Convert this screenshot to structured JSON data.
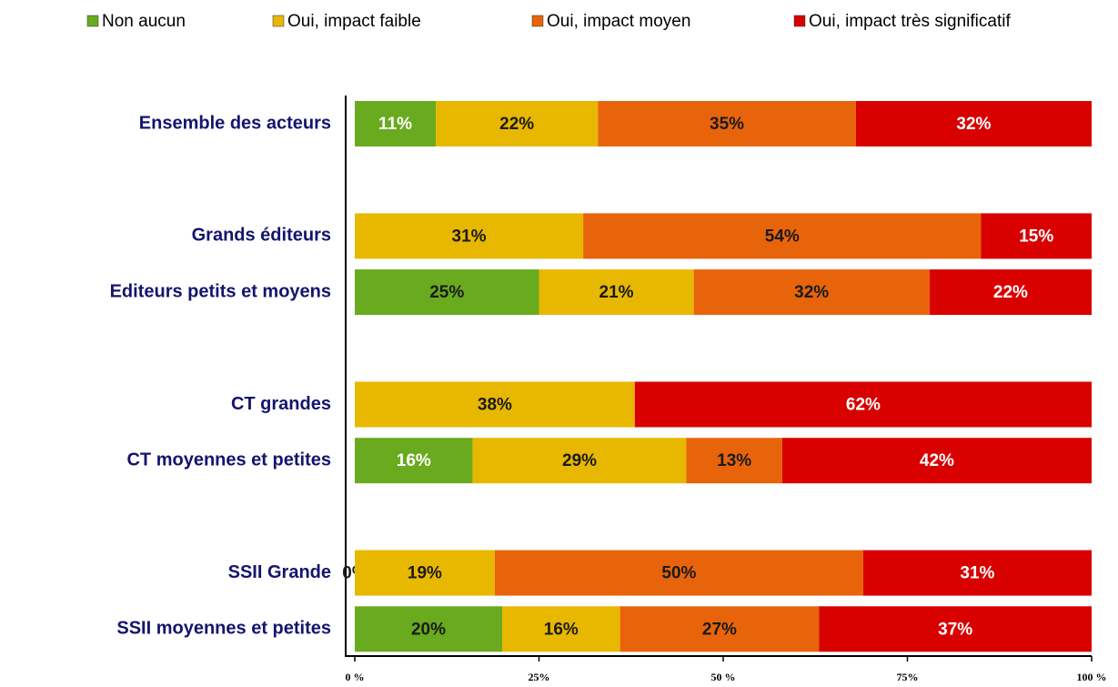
{
  "chart_data": {
    "type": "stacked_bar_horizontal",
    "categories": [
      "Ensemble des acteurs",
      null,
      "Grands éditeurs",
      "Editeurs petits et moyens",
      null,
      "CT grandes",
      "CT moyennes et petites",
      null,
      "SSII Grande",
      "SSII moyennes et petites"
    ],
    "series": [
      {
        "name": "Non aucun",
        "color": "#6aaa1e",
        "values": [
          11,
          null,
          null,
          25,
          null,
          null,
          16,
          null,
          0,
          20
        ],
        "value_labels": [
          "11%",
          null,
          null,
          "25%",
          null,
          null,
          "16%",
          null,
          "0%",
          "20%"
        ]
      },
      {
        "name": "Oui, impact faible",
        "color": "#e8b800",
        "values": [
          22,
          null,
          31,
          21,
          null,
          38,
          29,
          null,
          19,
          16
        ],
        "value_labels": [
          "22%",
          null,
          "31%",
          "21%",
          null,
          "38%",
          "29%",
          null,
          "19%",
          "16%"
        ]
      },
      {
        "name": "Oui, impact moyen",
        "color": "#e8640a",
        "values": [
          35,
          null,
          54,
          32,
          null,
          null,
          13,
          null,
          50,
          27
        ],
        "value_labels": [
          "35%",
          null,
          "54%",
          "32%",
          null,
          null,
          "13%",
          null,
          "50%",
          "27%"
        ]
      },
      {
        "name": "Oui, impact très significatif",
        "color": "#d90000",
        "values": [
          32,
          null,
          15,
          22,
          null,
          62,
          42,
          null,
          31,
          37
        ],
        "value_labels": [
          "32%",
          null,
          "15%",
          "22%",
          null,
          "62%",
          "42%",
          null,
          "31%",
          "37%"
        ]
      }
    ],
    "xlim": [
      0,
      100
    ],
    "xticks": [
      {
        "value": 0,
        "label": "0 %"
      },
      {
        "value": 25,
        "label": "25%"
      },
      {
        "value": 50,
        "label": "50 %"
      },
      {
        "value": 75,
        "label": "75%"
      },
      {
        "value": 100,
        "label": "100 %"
      }
    ],
    "legend": "top"
  }
}
